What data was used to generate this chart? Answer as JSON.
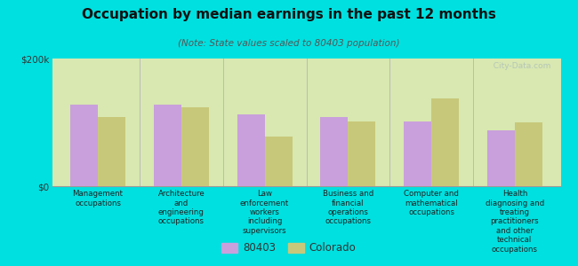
{
  "title": "Occupation by median earnings in the past 12 months",
  "subtitle": "(Note: State values scaled to 80403 population)",
  "categories": [
    "Management\noccupations",
    "Architecture\nand\nengineering\noccupations",
    "Law\nenforcement\nworkers\nincluding\nsupervisors",
    "Business and\nfinancial\noperations\noccupations",
    "Computer and\nmathematical\noccupations",
    "Health\ndiagnosing and\ntreating\npractitioners\nand other\ntechnical\noccupations"
  ],
  "values_80403": [
    128000,
    128000,
    112000,
    108000,
    102000,
    88000
  ],
  "values_colorado": [
    108000,
    124000,
    78000,
    102000,
    138000,
    100000
  ],
  "color_80403": "#c9a0dc",
  "color_colorado": "#c8c87a",
  "ylim": [
    0,
    200000
  ],
  "ytick_labels": [
    "$0",
    "$200k"
  ],
  "background_color": "#00e0e0",
  "plot_bg_top": "#d8e8b0",
  "plot_bg_bottom": "#e8f0c8",
  "watermark": "  City-Data.com",
  "legend_label_80403": "80403",
  "legend_label_colorado": "Colorado"
}
